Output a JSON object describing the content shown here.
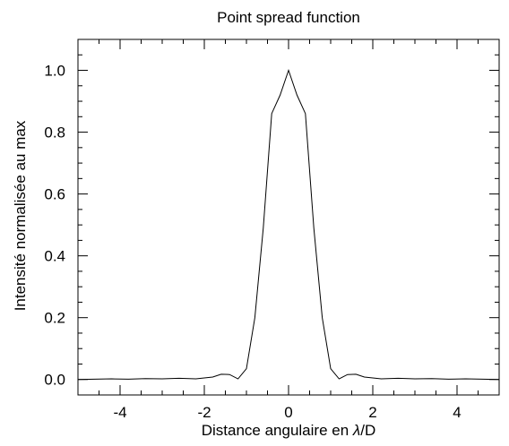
{
  "chart_data": {
    "type": "line",
    "title": "Point spread function",
    "xlabel_prefix": "Distance angulaire en ",
    "xlabel_symbol": "λ",
    "xlabel_suffix": "/D",
    "ylabel": "Intensité normalisée au max",
    "xlim": [
      -5,
      5
    ],
    "ylim": [
      -0.05,
      1.1
    ],
    "xticks": [
      -4,
      -2,
      0,
      2,
      4
    ],
    "xtick_labels": [
      "-4",
      "-2",
      "0",
      "2",
      "4"
    ],
    "yticks": [
      0.0,
      0.2,
      0.4,
      0.6,
      0.8,
      1.0
    ],
    "ytick_labels": [
      "0.0",
      "0.2",
      "0.4",
      "0.6",
      "0.8",
      "1.0"
    ],
    "grid": false,
    "series": [
      {
        "x": [
          -5.0,
          -4.6,
          -4.2,
          -3.8,
          -3.4,
          -3.0,
          -2.6,
          -2.2,
          -1.8,
          -1.6,
          -1.4,
          -1.2,
          -1.0,
          -0.8,
          -0.6,
          -0.4,
          -0.2,
          0.0,
          0.2,
          0.4,
          0.6,
          0.8,
          1.0,
          1.2,
          1.4,
          1.6,
          1.8,
          2.2,
          2.6,
          3.0,
          3.4,
          3.8,
          4.2,
          4.6,
          5.0
        ],
        "y": [
          0.0,
          0.001,
          0.002,
          0.001,
          0.003,
          0.002,
          0.004,
          0.002,
          0.008,
          0.017,
          0.016,
          0.002,
          0.035,
          0.2,
          0.49,
          0.86,
          0.92,
          1.0,
          0.92,
          0.86,
          0.49,
          0.2,
          0.035,
          0.002,
          0.016,
          0.017,
          0.008,
          0.002,
          0.004,
          0.002,
          0.003,
          0.001,
          0.002,
          0.001,
          0.0
        ]
      }
    ]
  }
}
